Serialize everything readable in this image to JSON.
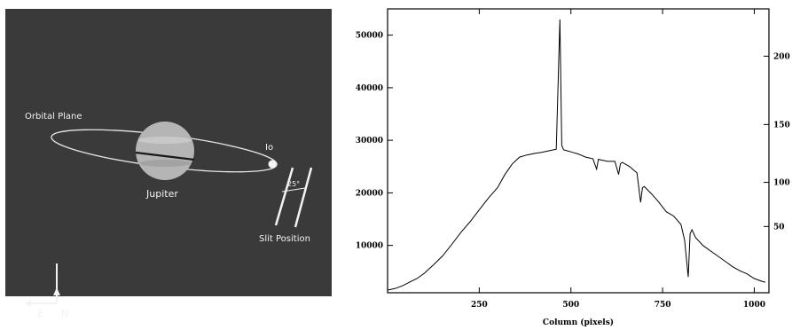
{
  "image_panel": {
    "labels": {
      "orbital_plane": "Orbital Plane",
      "jupiter": "Jupiter",
      "io": "Io",
      "slit_position": "Slit Position",
      "angle": "25°",
      "north": "N",
      "east": "E"
    },
    "colors": {
      "background": "#3a3a3a",
      "foreground": "#f2f2f2",
      "planet": "#b8b8b8"
    }
  },
  "chart_data": {
    "type": "line",
    "title": "",
    "xlabel": "Column (pixels)",
    "ylabel": "",
    "xlim": [
      0,
      1040
    ],
    "ylim": [
      1000,
      55000
    ],
    "x_ticks": [
      250,
      500,
      750,
      1000
    ],
    "y_ticks_left": [
      10000,
      20000,
      30000,
      40000,
      50000
    ],
    "y_ticks_right": [
      50,
      100,
      150,
      200
    ],
    "y_right_values_at_left": [
      [
        50,
        13600
      ],
      [
        100,
        22000
      ],
      [
        150,
        33000
      ],
      [
        200,
        46000
      ]
    ],
    "grid": false,
    "series": [
      {
        "x": [
          0,
          20,
          40,
          60,
          80,
          100,
          125,
          150,
          175,
          200,
          225,
          250,
          275,
          300,
          320,
          340,
          360,
          380,
          400,
          420,
          440,
          460,
          470,
          475,
          480,
          490,
          500,
          520,
          540,
          560,
          570,
          575,
          580,
          600,
          620,
          630,
          635,
          640,
          660,
          680,
          690,
          695,
          700,
          720,
          740,
          760,
          780,
          800,
          810,
          820,
          825,
          830,
          840,
          860,
          880,
          900,
          920,
          940,
          960,
          980,
          1000,
          1020,
          1030
        ],
        "y": [
          1500,
          1800,
          2300,
          3000,
          3700,
          4700,
          6300,
          8000,
          10200,
          12500,
          14500,
          16800,
          19000,
          21000,
          23500,
          25500,
          26800,
          27200,
          27500,
          27700,
          28000,
          28300,
          53000,
          29000,
          28200,
          28000,
          27800,
          27400,
          26800,
          26500,
          24500,
          26400,
          26300,
          26000,
          26000,
          23500,
          25500,
          25800,
          25000,
          23800,
          18200,
          21000,
          21200,
          19800,
          18200,
          16400,
          15600,
          14000,
          11000,
          4000,
          12200,
          13000,
          11500,
          10000,
          9000,
          8000,
          7000,
          6000,
          5200,
          4600,
          3700,
          3200,
          3000
        ]
      }
    ]
  }
}
